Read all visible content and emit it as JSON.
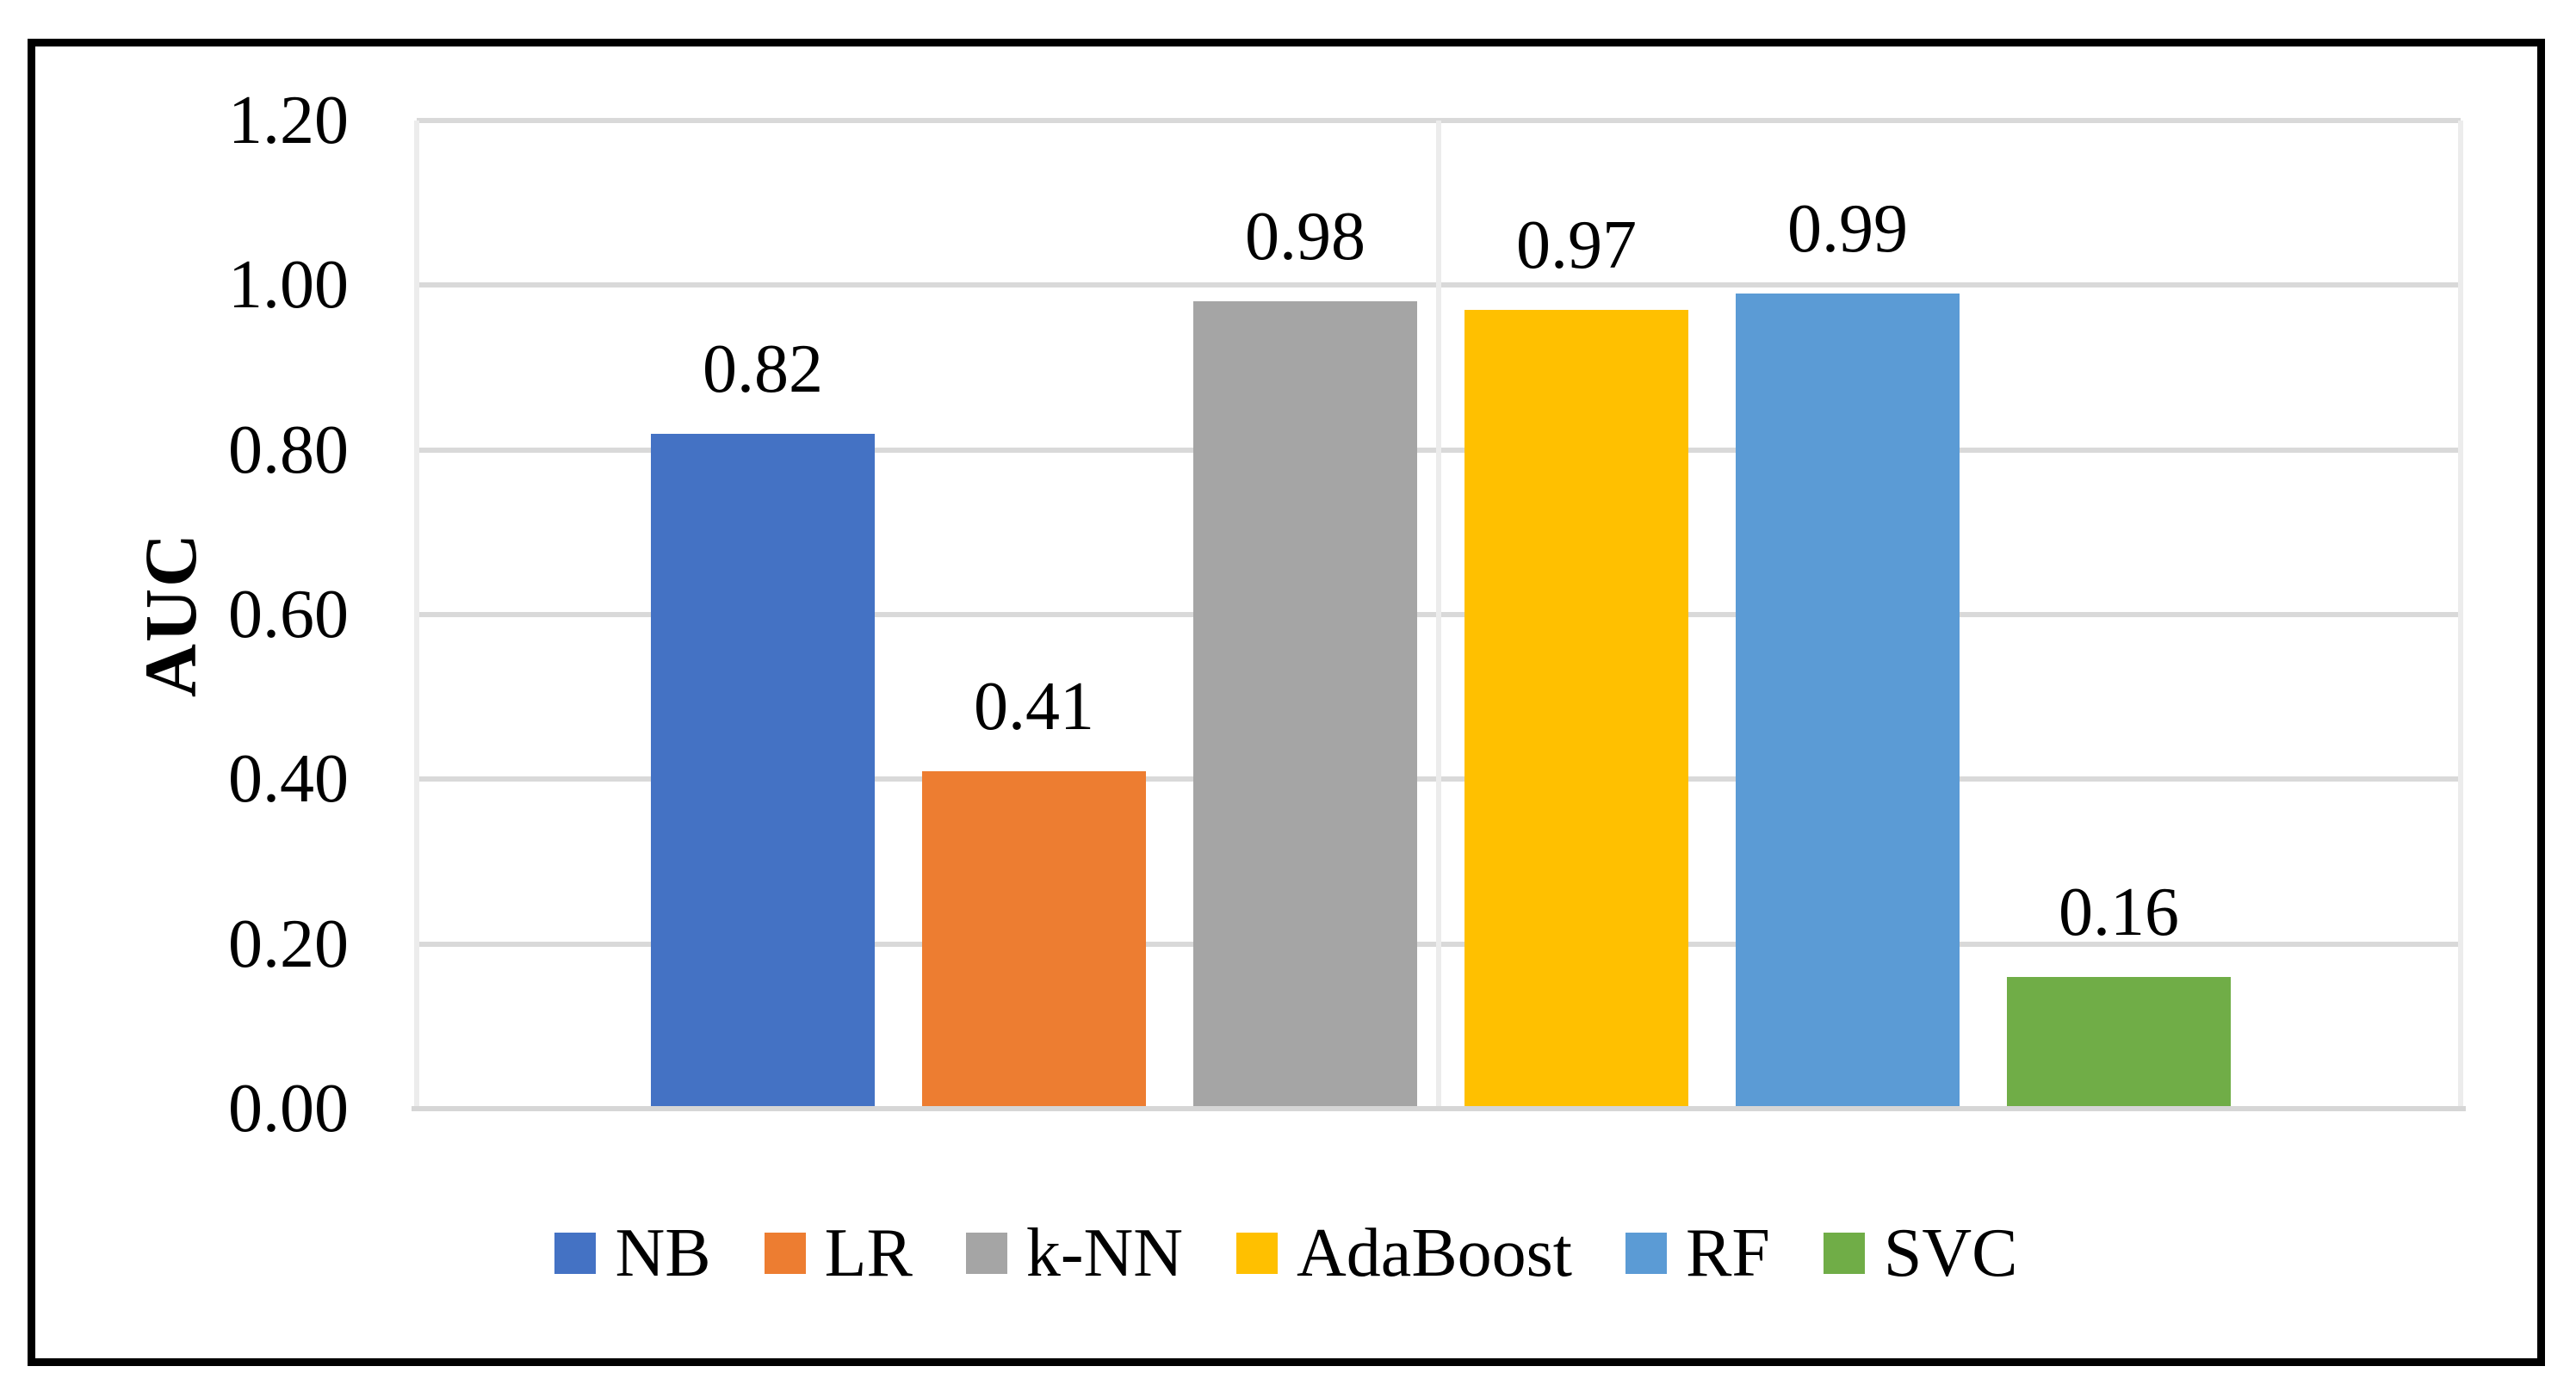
{
  "chart_data": {
    "type": "bar",
    "title": "",
    "categories": [
      "NB",
      "LR",
      "k-NN",
      "AdaBoost",
      "RF",
      "SVC"
    ],
    "values": [
      0.82,
      0.41,
      0.98,
      0.97,
      0.99,
      0.16
    ],
    "data_labels": [
      "0.82",
      "0.41",
      "0.98",
      "0.97",
      "0.99",
      "0.16"
    ],
    "bar_colors": [
      "#4472C4",
      "#ED7D31",
      "#A5A5A5",
      "#FFC000",
      "#5B9BD5",
      "#70AD47"
    ],
    "xlabel": "",
    "ylabel": "AUC",
    "ylim": [
      0.0,
      1.2
    ],
    "ytick_step": 0.2,
    "ytick_labels": [
      "1.20",
      "1.00",
      "0.80",
      "0.60",
      "0.40",
      "0.20",
      "0.00"
    ],
    "grid": {
      "horizontal_major": true,
      "vertical_category_boundaries": true,
      "gridline_color": "#D9D9D9",
      "vertical_line_color": "#ECECEC"
    },
    "legend": {
      "position": "bottom",
      "entries": [
        {
          "label": "NB",
          "color": "#4472C4"
        },
        {
          "label": "LR",
          "color": "#ED7D31"
        },
        {
          "label": "k-NN",
          "color": "#A5A5A5"
        },
        {
          "label": "AdaBoost",
          "color": "#FFC000"
        },
        {
          "label": "RF",
          "color": "#5B9BD5"
        },
        {
          "label": "SVC",
          "color": "#70AD47"
        }
      ]
    },
    "frame_border_color": "#000000",
    "text_color": "#000000"
  }
}
